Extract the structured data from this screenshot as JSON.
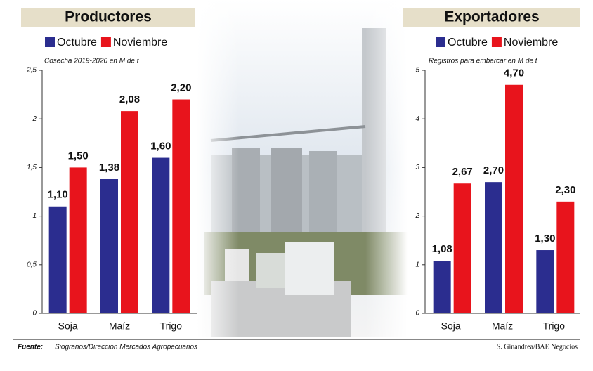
{
  "chart_data": [
    {
      "type": "bar",
      "title": "Productores",
      "subtitle": "Cosecha 2019-2020 en M de t",
      "categories": [
        "Soja",
        "Maíz",
        "Trigo"
      ],
      "series": [
        {
          "name": "Octubre",
          "color": "#2b2d8f",
          "values": [
            1.1,
            1.38,
            1.6
          ],
          "value_labels": [
            "1,10",
            "1,38",
            "1,60"
          ]
        },
        {
          "name": "Noviembre",
          "color": "#e8141c",
          "values": [
            1.5,
            2.08,
            2.2
          ],
          "value_labels": [
            "1,50",
            "2,08",
            "2,20"
          ]
        }
      ],
      "ylim": [
        0,
        2.5
      ],
      "yticks": [
        0,
        {
          "value": 0.5,
          "label": "0,5"
        },
        1,
        {
          "value": 1.5,
          "label": "1,5"
        },
        2,
        {
          "value": 2.5,
          "label": "2,5"
        }
      ]
    },
    {
      "type": "bar",
      "title": "Exportadores",
      "subtitle": "Registros para embarcar en M de t",
      "categories": [
        "Soja",
        "Maíz",
        "Trigo"
      ],
      "series": [
        {
          "name": "Octubre",
          "color": "#2b2d8f",
          "values": [
            1.08,
            2.7,
            1.3
          ],
          "value_labels": [
            "1,08",
            "2,70",
            "1,30"
          ]
        },
        {
          "name": "Noviembre",
          "color": "#e8141c",
          "values": [
            2.67,
            4.7,
            2.3
          ],
          "value_labels": [
            "2,67",
            "4,70",
            "2,30"
          ]
        }
      ],
      "ylim": [
        0,
        5
      ],
      "yticks": [
        0,
        1,
        2,
        3,
        4,
        5
      ]
    }
  ],
  "source_label": "Fuente:",
  "source": "Siogranos/Dirección Mercados Agropecuarios",
  "credit": "S. Ginandrea/BAE Negocios"
}
